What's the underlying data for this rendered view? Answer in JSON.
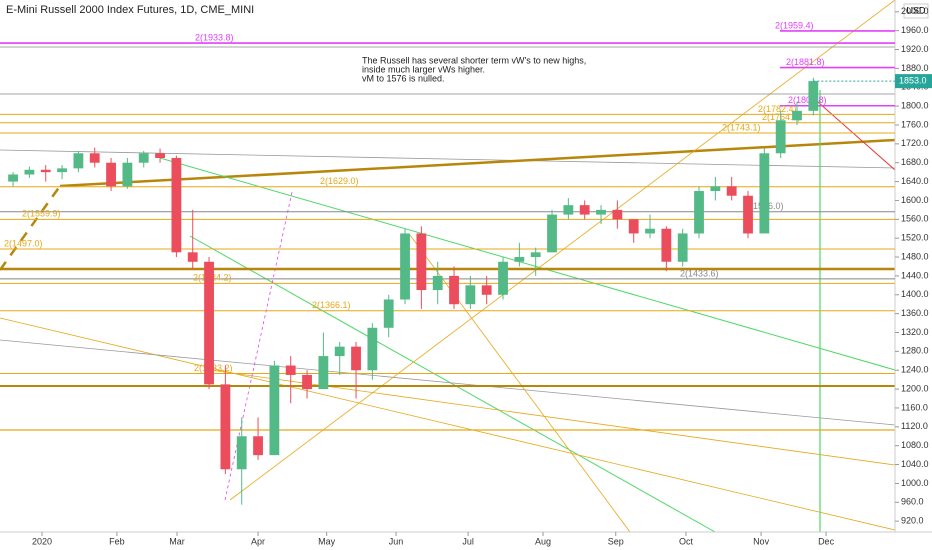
{
  "chart_data": {
    "type": "candlestick",
    "title": "E-Mini Russell 2000 Index Futures, 1D, CME_MINI",
    "currency": "USD",
    "note": [
      "The Russell has several shorter term vW's to new highs,",
      "inside much larger vWs higher.",
      "vM to 1576 is nulled."
    ],
    "up_color": "#53b987",
    "down_color": "#eb4d5c",
    "open": [
      1640,
      1655,
      1665,
      1660,
      1668,
      1700,
      1680,
      1630,
      1680,
      1700,
      1690,
      1490,
      1470,
      1210,
      1030,
      1100,
      1060,
      1250,
      1230,
      1200,
      1270,
      1290,
      1240,
      1330,
      1390,
      1530,
      1410,
      1440,
      1380,
      1420,
      1400,
      1470,
      1480,
      1490,
      1570,
      1590,
      1570,
      1580,
      1560,
      1530,
      1540,
      1470,
      1530,
      1620,
      1630,
      1610,
      1530,
      1700,
      1770,
      1790
    ],
    "high": [
      1660,
      1672,
      1675,
      1675,
      1705,
      1712,
      1690,
      1690,
      1705,
      1710,
      1695,
      1580,
      1480,
      1250,
      1140,
      1140,
      1260,
      1270,
      1240,
      1320,
      1300,
      1300,
      1340,
      1400,
      1540,
      1545,
      1470,
      1460,
      1440,
      1440,
      1480,
      1510,
      1500,
      1580,
      1605,
      1600,
      1590,
      1600,
      1560,
      1570,
      1545,
      1540,
      1630,
      1650,
      1650,
      1620,
      1710,
      1790,
      1810,
      1860
    ],
    "low": [
      1630,
      1648,
      1640,
      1645,
      1660,
      1670,
      1620,
      1625,
      1670,
      1680,
      1480,
      1455,
      1200,
      1020,
      955,
      1050,
      1060,
      1170,
      1180,
      1200,
      1230,
      1180,
      1220,
      1310,
      1380,
      1370,
      1380,
      1370,
      1370,
      1380,
      1390,
      1460,
      1440,
      1490,
      1560,
      1560,
      1550,
      1540,
      1510,
      1520,
      1450,
      1460,
      1520,
      1600,
      1600,
      1520,
      1530,
      1690,
      1760,
      1780
    ],
    "close": [
      1655,
      1665,
      1660,
      1668,
      1700,
      1680,
      1630,
      1680,
      1700,
      1690,
      1490,
      1470,
      1210,
      1030,
      1100,
      1060,
      1250,
      1230,
      1200,
      1270,
      1290,
      1240,
      1330,
      1390,
      1530,
      1410,
      1440,
      1380,
      1420,
      1400,
      1470,
      1480,
      1490,
      1570,
      1590,
      1570,
      1580,
      1560,
      1530,
      1540,
      1470,
      1530,
      1620,
      1630,
      1610,
      1530,
      1700,
      1770,
      1790,
      1853
    ],
    "xlim": [
      -0.8,
      54
    ],
    "xticks": [
      {
        "value": 1.77,
        "label": "2020"
      },
      {
        "value": 6.36,
        "label": "Feb"
      },
      {
        "value": 10.04,
        "label": "Mar"
      },
      {
        "value": 15.0,
        "label": "Apr"
      },
      {
        "value": 19.2,
        "label": "May"
      },
      {
        "value": 23.45,
        "label": "Jun"
      },
      {
        "value": 27.86,
        "label": "Jul"
      },
      {
        "value": 32.45,
        "label": "Aug"
      },
      {
        "value": 36.9,
        "label": "Sep"
      },
      {
        "value": 41.2,
        "label": "Oct"
      },
      {
        "value": 45.8,
        "label": "Nov"
      },
      {
        "value": 49.78,
        "label": "Dec"
      }
    ],
    "ylim": [
      897,
      2025
    ],
    "yticks": [
      {
        "value": 920,
        "label": "920.0"
      },
      {
        "value": 960,
        "label": "960.0"
      },
      {
        "value": 1000,
        "label": "1000.0"
      },
      {
        "value": 1040,
        "label": "1040.0"
      },
      {
        "value": 1080,
        "label": "1080.0"
      },
      {
        "value": 1120,
        "label": "1120.0"
      },
      {
        "value": 1160,
        "label": "1160.0"
      },
      {
        "value": 1200,
        "label": "1200.0"
      },
      {
        "value": 1240,
        "label": "1240.0"
      },
      {
        "value": 1280,
        "label": "1280.0"
      },
      {
        "value": 1320,
        "label": "1320.0"
      },
      {
        "value": 1360,
        "label": "1360.0"
      },
      {
        "value": 1400,
        "label": "1400.0"
      },
      {
        "value": 1440,
        "label": "1440.0"
      },
      {
        "value": 1480,
        "label": "1480.0"
      },
      {
        "value": 1520,
        "label": "1520.0"
      },
      {
        "value": 1560,
        "label": "1560.0"
      },
      {
        "value": 1600,
        "label": "1600.0"
      },
      {
        "value": 1640,
        "label": "1640.0"
      },
      {
        "value": 1680,
        "label": "1680.0"
      },
      {
        "value": 1720,
        "label": "1720.0"
      },
      {
        "value": 1760,
        "label": "1760.0"
      },
      {
        "value": 1800,
        "label": "1800.0"
      },
      {
        "value": 1840,
        "label": "1840.0"
      },
      {
        "value": 1880,
        "label": "1880.0"
      },
      {
        "value": 1920,
        "label": "1920.0"
      },
      {
        "value": 1960,
        "label": "1960.0"
      },
      {
        "value": 2000,
        "label": "2000.0"
      }
    ],
    "last_price": {
      "value": 1853.0,
      "label": "1853.0",
      "color": "#26a69a"
    },
    "levels": [
      {
        "value": 1933.8,
        "label": "2(1933.8)",
        "color": "#e040fb"
      },
      {
        "value": 1959.4,
        "label": "2(1959.4)",
        "color": "#e040fb"
      },
      {
        "value": 1881.8,
        "label": "2(1881.8)",
        "color": "#e040fb"
      },
      {
        "value": 1800.8,
        "label": "2(1800.8)",
        "color": "#e040fb"
      },
      {
        "value": 1782.4,
        "label": "2(1782.4)",
        "color": "#e6a817"
      },
      {
        "value": 1764.8,
        "label": "2(1764.8)",
        "color": "#e6a817"
      },
      {
        "value": 1743.1,
        "label": "2(1743.1)",
        "color": "#e6a817"
      },
      {
        "value": 1629.0,
        "label": "2(1629.0)",
        "color": "#e6a817"
      },
      {
        "value": 1576.0,
        "label": "2(1576.0)",
        "color": "#888888"
      },
      {
        "value": 1559.9,
        "label": "2(1559.9)",
        "color": "#e6a817"
      },
      {
        "value": 1497.0,
        "label": "2(1497.0)",
        "color": "#e6a817"
      },
      {
        "value": 1433.6,
        "label": "2(1433.6)",
        "color": "#888888"
      },
      {
        "value": 1424.2,
        "label": "2(1424.2)",
        "color": "#e6a817"
      },
      {
        "value": 1366.1,
        "label": "2(1366.1)",
        "color": "#e6a817"
      },
      {
        "value": 1233.2,
        "label": "2(1233.2)",
        "color": "#e6a817"
      }
    ]
  }
}
